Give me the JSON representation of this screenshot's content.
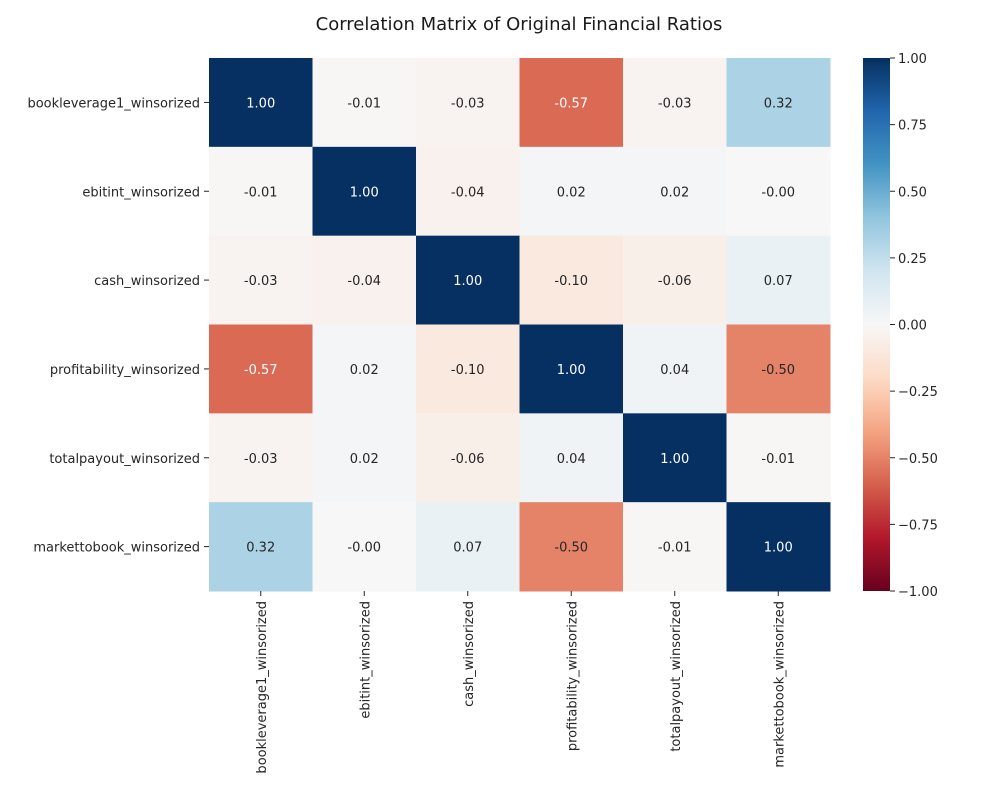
{
  "chart_data": {
    "type": "heatmap",
    "title": "Correlation Matrix of Original Financial Ratios",
    "xlabel": "",
    "ylabel": "",
    "row_labels": [
      "bookleverage1_winsorized",
      "ebitint_winsorized",
      "cash_winsorized",
      "profitability_winsorized",
      "totalpayout_winsorized",
      "markettobook_winsorized"
    ],
    "col_labels": [
      "bookleverage1_winsorized",
      "ebitint_winsorized",
      "cash_winsorized",
      "profitability_winsorized",
      "totalpayout_winsorized",
      "markettobook_winsorized"
    ],
    "values": [
      [
        1.0,
        -0.01,
        -0.03,
        -0.57,
        -0.03,
        0.32
      ],
      [
        -0.01,
        1.0,
        -0.04,
        0.02,
        0.02,
        -0.0
      ],
      [
        -0.03,
        -0.04,
        1.0,
        -0.1,
        -0.06,
        0.07
      ],
      [
        -0.57,
        0.02,
        -0.1,
        1.0,
        0.04,
        -0.5
      ],
      [
        -0.03,
        0.02,
        -0.06,
        0.04,
        1.0,
        -0.01
      ],
      [
        0.32,
        -0.0,
        0.07,
        -0.5,
        -0.01,
        1.0
      ]
    ],
    "cell_labels": [
      [
        "1.00",
        "-0.01",
        "-0.03",
        "-0.57",
        "-0.03",
        "0.32"
      ],
      [
        "-0.01",
        "1.00",
        "-0.04",
        "0.02",
        "0.02",
        "-0.00"
      ],
      [
        "-0.03",
        "-0.04",
        "1.00",
        "-0.10",
        "-0.06",
        "0.07"
      ],
      [
        "-0.57",
        "0.02",
        "-0.10",
        "1.00",
        "0.04",
        "-0.50"
      ],
      [
        "-0.03",
        "0.02",
        "-0.06",
        "0.04",
        "1.00",
        "-0.01"
      ],
      [
        "0.32",
        "-0.00",
        "0.07",
        "-0.50",
        "-0.01",
        "1.00"
      ]
    ],
    "colormap": "RdBu",
    "vmin": -1,
    "vmax": 1,
    "colorbar": {
      "ticks": [
        -1.0,
        -0.75,
        -0.5,
        -0.25,
        0.0,
        0.25,
        0.5,
        0.75,
        1.0
      ],
      "tick_labels": [
        "−1.00",
        "−0.75",
        "−0.50",
        "−0.25",
        "0.00",
        "0.25",
        "0.50",
        "0.75",
        "1.00"
      ]
    },
    "grid": false,
    "legend": "colorbar-right"
  }
}
